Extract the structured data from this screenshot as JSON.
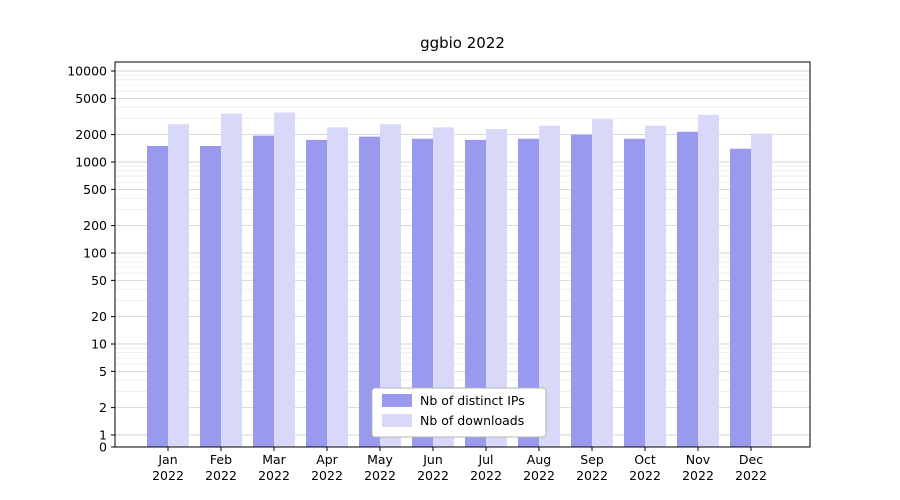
{
  "chart_data": {
    "type": "bar",
    "title": "ggbio 2022",
    "scale": "symlog",
    "grid": true,
    "legend_position": "bottom-center-inside",
    "xlabel": "",
    "ylabel": "",
    "ylim": [
      0,
      13000
    ],
    "year_label": "2022",
    "categories": [
      "Jan",
      "Feb",
      "Mar",
      "Apr",
      "May",
      "Jun",
      "Jul",
      "Aug",
      "Sep",
      "Oct",
      "Nov",
      "Dec"
    ],
    "y_ticks": [
      0,
      1,
      2,
      5,
      10,
      20,
      50,
      100,
      200,
      500,
      1000,
      2000,
      5000,
      10000
    ],
    "series": [
      {
        "name": "Nb of distinct IPs",
        "color": "#9999ee",
        "values": [
          1500,
          1500,
          1950,
          1750,
          1900,
          1800,
          1750,
          1800,
          2000,
          1800,
          2150,
          1400
        ]
      },
      {
        "name": "Nb of downloads",
        "color": "#d8d8f8",
        "values": [
          2600,
          3400,
          3500,
          2400,
          2600,
          2400,
          2300,
          2500,
          2950,
          2500,
          3300,
          2050
        ]
      }
    ],
    "colors": {
      "grid_major": "#d6d6d6",
      "grid_minor": "#ebebeb",
      "axis": "#000000",
      "legend_border": "#b5b5b5",
      "background": "#ffffff"
    }
  }
}
